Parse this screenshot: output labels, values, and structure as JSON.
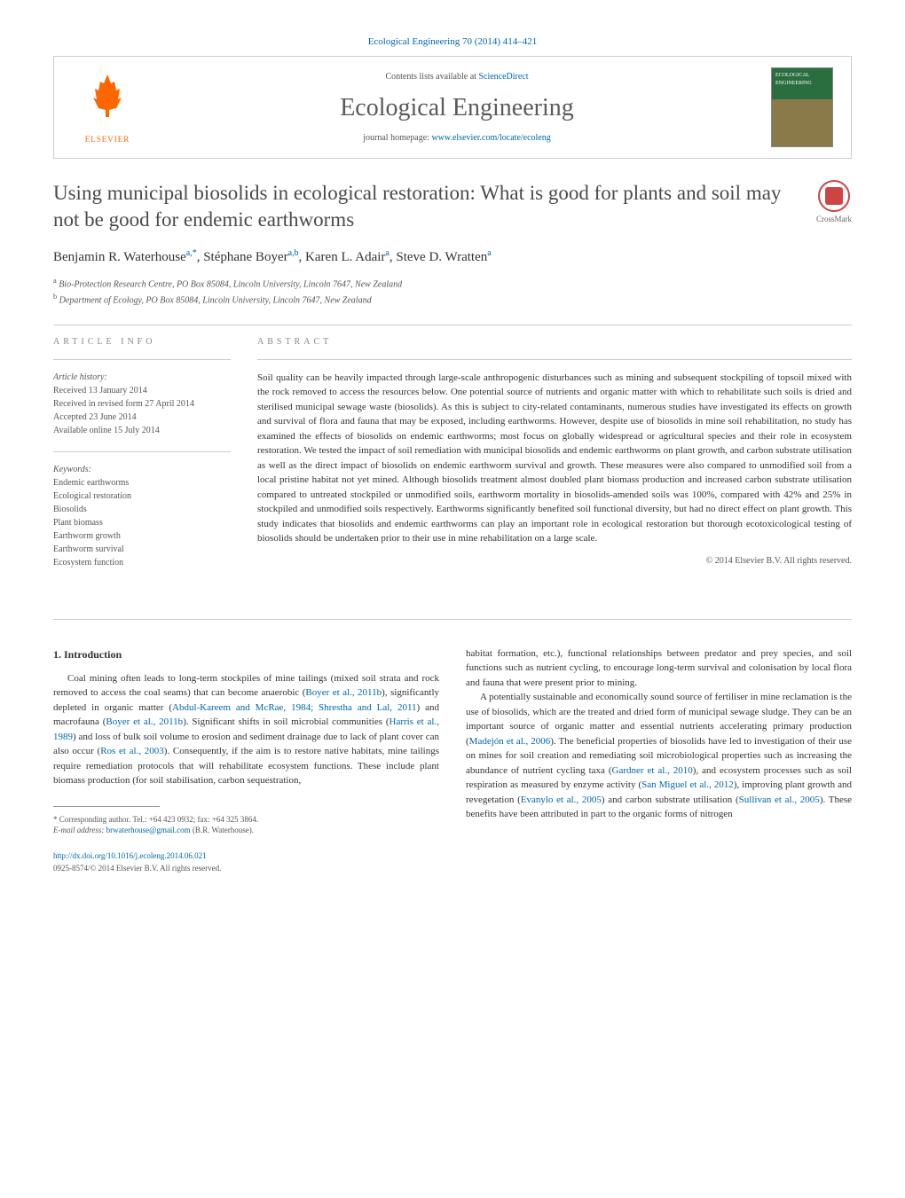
{
  "journal_ref": "Ecological Engineering 70 (2014) 414–421",
  "header": {
    "contents_prefix": "Contents lists available at ",
    "contents_link": "ScienceDirect",
    "journal_name": "Ecological Engineering",
    "homepage_prefix": "journal homepage: ",
    "homepage_link": "www.elsevier.com/locate/ecoleng",
    "elsevier_label": "ELSEVIER",
    "cover_label": "ECOLOGICAL ENGINEERING"
  },
  "crossmark_label": "CrossMark",
  "title": "Using municipal biosolids in ecological restoration: What is good for plants and soil may not be good for endemic earthworms",
  "authors_html": "Benjamin R. Waterhouse",
  "authors": [
    {
      "name": "Benjamin R. Waterhouse",
      "sup": "a,*"
    },
    {
      "name": "Stéphane Boyer",
      "sup": "a,b"
    },
    {
      "name": "Karen L. Adair",
      "sup": "a"
    },
    {
      "name": "Steve D. Wratten",
      "sup": "a"
    }
  ],
  "affiliations": [
    {
      "sup": "a",
      "text": "Bio-Protection Research Centre, PO Box 85084, Lincoln University, Lincoln 7647, New Zealand"
    },
    {
      "sup": "b",
      "text": "Department of Ecology, PO Box 85084, Lincoln University, Lincoln 7647, New Zealand"
    }
  ],
  "article_info": {
    "header": "article info",
    "history_label": "Article history:",
    "received": "Received 13 January 2014",
    "revised": "Received in revised form 27 April 2014",
    "accepted": "Accepted 23 June 2014",
    "online": "Available online 15 July 2014",
    "keywords_label": "Keywords:",
    "keywords": [
      "Endemic earthworms",
      "Ecological restoration",
      "Biosolids",
      "Plant biomass",
      "Earthworm growth",
      "Earthworm survival",
      "Ecosystem function"
    ]
  },
  "abstract": {
    "header": "abstract",
    "text": "Soil quality can be heavily impacted through large-scale anthropogenic disturbances such as mining and subsequent stockpiling of topsoil mixed with the rock removed to access the resources below. One potential source of nutrients and organic matter with which to rehabilitate such soils is dried and sterilised municipal sewage waste (biosolids). As this is subject to city-related contaminants, numerous studies have investigated its effects on growth and survival of flora and fauna that may be exposed, including earthworms. However, despite use of biosolids in mine soil rehabilitation, no study has examined the effects of biosolids on endemic earthworms; most focus on globally widespread or agricultural species and their role in ecosystem restoration. We tested the impact of soil remediation with municipal biosolids and endemic earthworms on plant growth, and carbon substrate utilisation as well as the direct impact of biosolids on endemic earthworm survival and growth. These measures were also compared to unmodified soil from a local pristine habitat not yet mined. Although biosolids treatment almost doubled plant biomass production and increased carbon substrate utilisation compared to untreated stockpiled or unmodified soils, earthworm mortality in biosolids-amended soils was 100%, compared with 42% and 25% in stockpiled and unmodified soils respectively. Earthworms significantly benefited soil functional diversity, but had no direct effect on plant growth. This study indicates that biosolids and endemic earthworms can play an important role in ecological restoration but thorough ecotoxicological testing of biosolids should be undertaken prior to their use in mine rehabilitation on a large scale.",
    "copyright": "© 2014 Elsevier B.V. All rights reserved."
  },
  "body": {
    "intro_heading": "1. Introduction",
    "left_col": "Coal mining often leads to long-term stockpiles of mine tailings (mixed soil strata and rock removed to access the coal seams) that can become anaerobic (<span class=\"cite\">Boyer et al., 2011b</span>), significantly depleted in organic matter (<span class=\"cite\">Abdul-Kareem and McRae, 1984; Shrestha and Lal, 2011</span>) and macrofauna (<span class=\"cite\">Boyer et al., 2011b</span>). Significant shifts in soil microbial communities (<span class=\"cite\">Harris et al., 1989</span>) and loss of bulk soil volume to erosion and sediment drainage due to lack of plant cover can also occur (<span class=\"cite\">Ros et al., 2003</span>). Consequently, if the aim is to restore native habitats, mine tailings require remediation protocols that will rehabilitate ecosystem functions. These include plant biomass production (for soil stabilisation, carbon sequestration,",
    "right_col_p1": "habitat formation, etc.), functional relationships between predator and prey species, and soil functions such as nutrient cycling, to encourage long-term survival and colonisation by local flora and fauna that were present prior to mining.",
    "right_col_p2": "A potentially sustainable and economically sound source of fertiliser in mine reclamation is the use of biosolids, which are the treated and dried form of municipal sewage sludge. They can be an important source of organic matter and essential nutrients accelerating primary production (<span class=\"cite\">Madejón et al., 2006</span>). The beneficial properties of biosolids have led to investigation of their use on mines for soil creation and remediating soil microbiological properties such as increasing the abundance of nutrient cycling taxa (<span class=\"cite\">Gardner et al., 2010</span>), and ecosystem processes such as soil respiration as measured by enzyme activity (<span class=\"cite\">San Miguel et al., 2012</span>), improving plant growth and revegetation (<span class=\"cite\">Evanylo et al., 2005</span>) and carbon substrate utilisation (<span class=\"cite\">Sullivan et al., 2005</span>). These benefits have been attributed in part to the organic forms of nitrogen"
  },
  "footnotes": {
    "corresponding": "* Corresponding author. Tel.: +64 423 0932; fax: +64 325 3864.",
    "email_label": "E-mail address: ",
    "email": "brwaterhouse@gmail.com",
    "email_suffix": " (B.R. Waterhouse)."
  },
  "doi": {
    "link": "http://dx.doi.org/10.1016/j.ecoleng.2014.06.021",
    "issn_line": "0925-8574/© 2014 Elsevier B.V. All rights reserved."
  },
  "colors": {
    "link": "#0066aa",
    "text": "#333333",
    "muted": "#555555",
    "elsevier": "#ff6600"
  }
}
